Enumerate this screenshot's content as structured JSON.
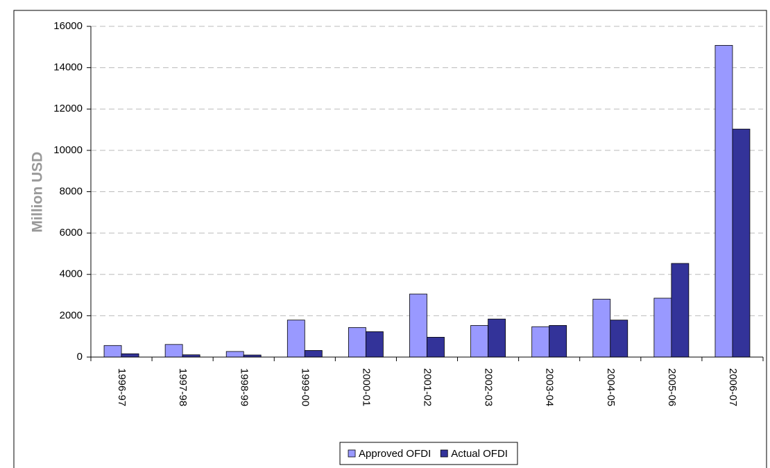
{
  "chart_data": {
    "type": "bar",
    "y_label": "Million USD",
    "categories": [
      "1996-97",
      "1997-98",
      "1998-99",
      "1999-00",
      "2000-01",
      "2001-02",
      "2002-03",
      "2003-04",
      "2004-05",
      "2005-06",
      "2006-07"
    ],
    "series": [
      {
        "name": "Approved OFDI",
        "color": "#9999ff",
        "values": [
          560,
          610,
          270,
          1790,
          1430,
          3050,
          1530,
          1470,
          2800,
          2850,
          15080
        ]
      },
      {
        "name": "Actual OFDI",
        "color": "#333399",
        "values": [
          160,
          110,
          100,
          320,
          1230,
          960,
          1840,
          1530,
          1790,
          4530,
          11030
        ]
      }
    ],
    "ylim": [
      0,
      16000
    ],
    "yticks": [
      0,
      2000,
      4000,
      6000,
      8000,
      10000,
      12000,
      14000,
      16000
    ],
    "grid": true,
    "legend": "bottom"
  }
}
